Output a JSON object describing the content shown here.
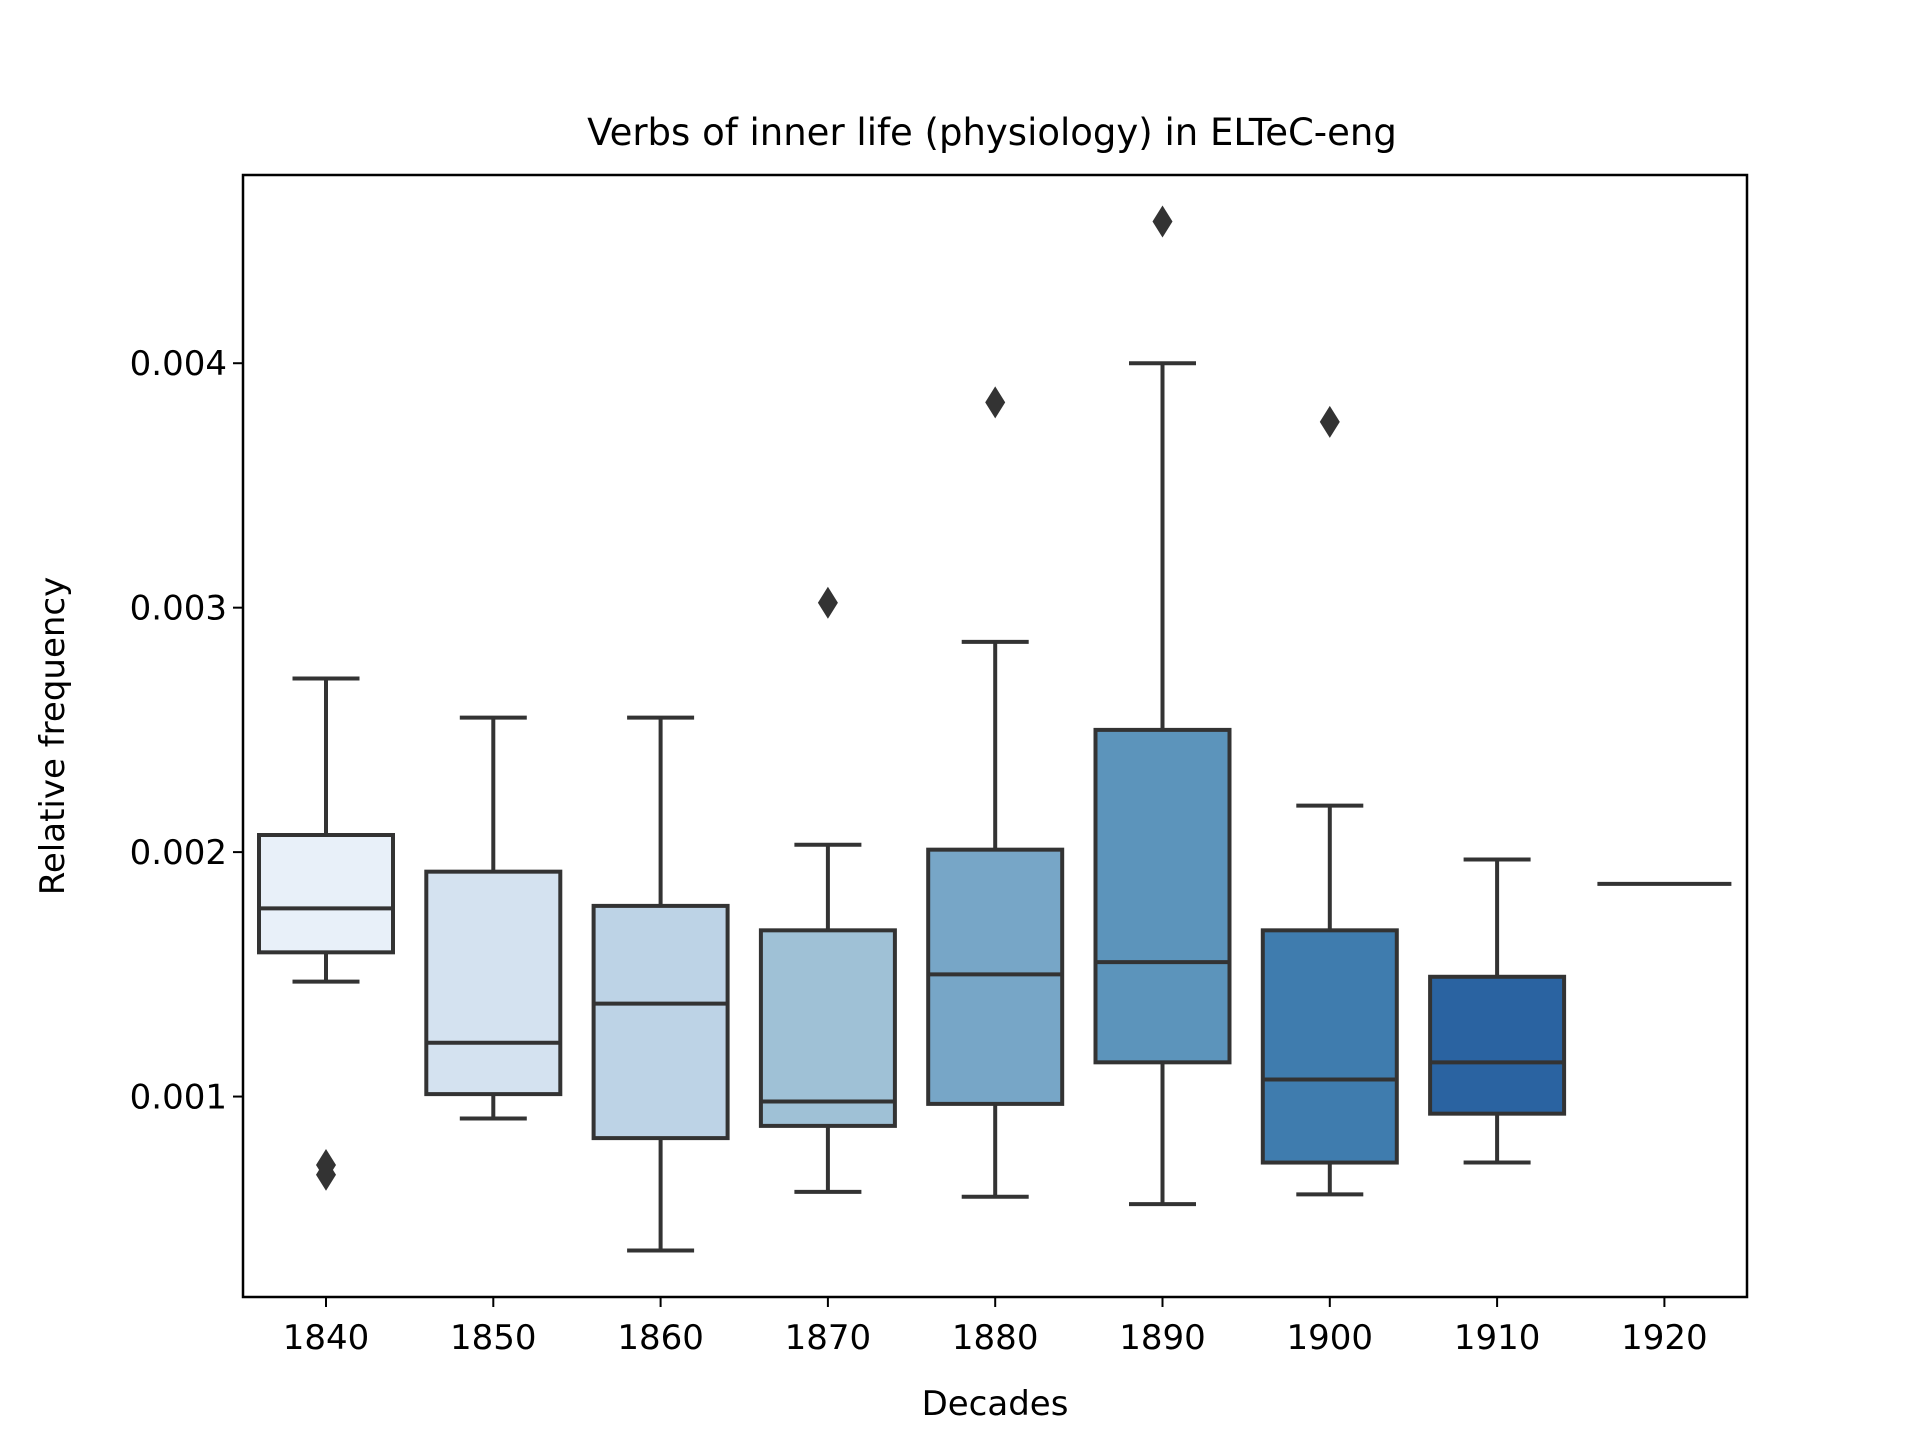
{
  "chart_data": {
    "type": "box",
    "title": "Verbs of inner life (physiology) in ELTeC-eng",
    "xlabel": "Decades",
    "ylabel": "Relative frequency",
    "ylim": [
      0.00018,
      0.00477
    ],
    "yticks": [
      0.001,
      0.002,
      0.003,
      0.004
    ],
    "ytick_labels": [
      "0.001",
      "0.002",
      "0.003",
      "0.004"
    ],
    "categories": [
      "1840",
      "1850",
      "1860",
      "1870",
      "1880",
      "1890",
      "1900",
      "1910",
      "1920"
    ],
    "series": [
      {
        "name": "1840",
        "color": "#e8f0f9",
        "whisker_low": 0.00147,
        "q1": 0.00159,
        "median": 0.00177,
        "q3": 0.00207,
        "whisker_high": 0.00271,
        "outliers": [
          0.00068,
          0.00072
        ]
      },
      {
        "name": "1850",
        "color": "#d4e2f0",
        "whisker_low": 0.00091,
        "q1": 0.00101,
        "median": 0.00122,
        "q3": 0.00192,
        "whisker_high": 0.00255,
        "outliers": []
      },
      {
        "name": "1860",
        "color": "#bdd3e6",
        "whisker_low": 0.00037,
        "q1": 0.00083,
        "median": 0.00138,
        "q3": 0.00178,
        "whisker_high": 0.00255,
        "outliers": []
      },
      {
        "name": "1870",
        "color": "#9fc1d6",
        "whisker_low": 0.00061,
        "q1": 0.00088,
        "median": 0.00098,
        "q3": 0.00168,
        "whisker_high": 0.00203,
        "outliers": [
          0.00302
        ]
      },
      {
        "name": "1880",
        "color": "#77a6c7",
        "whisker_low": 0.00059,
        "q1": 0.00097,
        "median": 0.0015,
        "q3": 0.00201,
        "whisker_high": 0.00286,
        "outliers": [
          0.00384
        ]
      },
      {
        "name": "1890",
        "color": "#5c94bb",
        "whisker_low": 0.00056,
        "q1": 0.00114,
        "median": 0.00155,
        "q3": 0.0025,
        "whisker_high": 0.004,
        "outliers": [
          0.00458
        ]
      },
      {
        "name": "1900",
        "color": "#3f7cae",
        "whisker_low": 0.0006,
        "q1": 0.00073,
        "median": 0.00107,
        "q3": 0.00168,
        "whisker_high": 0.00219,
        "outliers": [
          0.00376
        ]
      },
      {
        "name": "1910",
        "color": "#2a63a1",
        "whisker_low": 0.00073,
        "q1": 0.00093,
        "median": 0.00114,
        "q3": 0.00149,
        "whisker_high": 0.00197,
        "outliers": []
      },
      {
        "name": "1920",
        "color": "#1f4f90",
        "whisker_low": 0.00187,
        "q1": 0.00187,
        "median": 0.00187,
        "q3": 0.00187,
        "whisker_high": 0.00187,
        "outliers": []
      }
    ],
    "grid": false,
    "legend": "none"
  }
}
